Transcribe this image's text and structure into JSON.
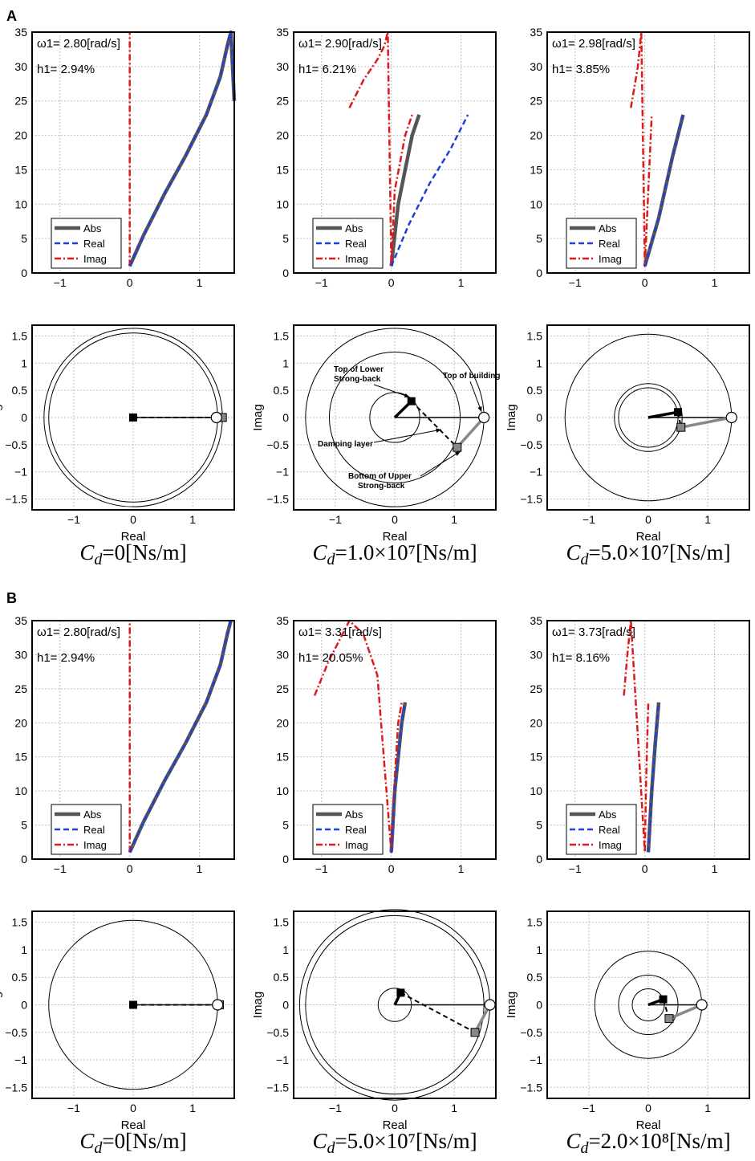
{
  "panel_labels": [
    "A",
    "B"
  ],
  "legend": {
    "abs": "Abs",
    "real": "Real",
    "imag": "Imag"
  },
  "axis_text": {
    "real": "Real",
    "imag": "Imag"
  },
  "colors": {
    "abs": "#555555",
    "real": "#1f3fd6",
    "imag": "#e01818",
    "grid": "#bfbfbf"
  },
  "chart_data": [
    {
      "group": "A",
      "col": 0,
      "type": "line",
      "xlim": [
        -1.4,
        1.5
      ],
      "ylim": [
        0,
        35
      ],
      "xticks": [
        -1,
        0,
        1
      ],
      "yticks": [
        0,
        5,
        10,
        15,
        20,
        25,
        30,
        35
      ],
      "omega_label": "ω1= 2.80[rad/s]",
      "h_label": "h1= 2.94%",
      "damper": "0",
      "series": [
        {
          "name": "Abs",
          "x": [
            0,
            0.2,
            0.5,
            0.8,
            1.1,
            1.3,
            1.4,
            1.45,
            1.5
          ],
          "y": [
            1,
            5.5,
            11.5,
            17,
            23,
            28.5,
            33,
            35,
            25
          ]
        },
        {
          "name": "Real",
          "x": [
            0,
            0.2,
            0.5,
            0.8,
            1.1,
            1.3,
            1.4,
            1.45,
            1.5
          ],
          "y": [
            1,
            5.5,
            11.5,
            17,
            23,
            28.5,
            33,
            35,
            25
          ]
        },
        {
          "name": "Imag",
          "x": [
            0,
            0,
            0,
            0
          ],
          "y": [
            1,
            23,
            24,
            35
          ]
        }
      ]
    },
    {
      "group": "A",
      "col": 1,
      "type": "line",
      "xlim": [
        -1.4,
        1.5
      ],
      "ylim": [
        0,
        35
      ],
      "xticks": [
        -1,
        0,
        1
      ],
      "yticks": [
        0,
        5,
        10,
        15,
        20,
        25,
        30,
        35
      ],
      "omega_label": "ω1= 2.90[rad/s]",
      "h_label": "h1= 6.21%",
      "damper": "1.0×10⁷",
      "series": [
        {
          "name": "Abs",
          "x": [
            0,
            0.1,
            0.2,
            0.3,
            0.4
          ],
          "y": [
            1,
            10,
            15,
            20,
            23
          ]
        },
        {
          "name": "Real",
          "x": [
            0,
            0.25,
            0.55,
            0.85,
            1.1
          ],
          "y": [
            1,
            7,
            13,
            18,
            23
          ]
        },
        {
          "name": "Imag",
          "x": [
            -0.6,
            -0.4,
            -0.2,
            -0.1,
            -0.05,
            0,
            0.05,
            0.2,
            0.3
          ],
          "y": [
            24,
            28,
            31,
            33,
            35,
            1,
            12,
            20,
            23
          ]
        }
      ]
    },
    {
      "group": "A",
      "col": 2,
      "type": "line",
      "xlim": [
        -1.4,
        1.5
      ],
      "ylim": [
        0,
        35
      ],
      "xticks": [
        -1,
        0,
        1
      ],
      "yticks": [
        0,
        5,
        10,
        15,
        20,
        25,
        30,
        35
      ],
      "omega_label": "ω1= 2.98[rad/s]",
      "h_label": "h1= 3.85%",
      "damper": "5.0×10⁷",
      "series": [
        {
          "name": "Abs",
          "x": [
            0,
            0.2,
            0.4,
            0.55
          ],
          "y": [
            1,
            8,
            17,
            23
          ]
        },
        {
          "name": "Real",
          "x": [
            0,
            0.2,
            0.4,
            0.55
          ],
          "y": [
            1,
            8,
            17,
            23
          ]
        },
        {
          "name": "Imag",
          "x": [
            -0.2,
            -0.1,
            -0.05,
            0,
            0.05,
            0.1
          ],
          "y": [
            24,
            30,
            35,
            1,
            12,
            23
          ]
        }
      ]
    },
    {
      "group": "A",
      "col": 0,
      "type": "scatter",
      "xlim": [
        -1.7,
        1.7
      ],
      "ylim": [
        -1.7,
        1.7
      ],
      "xticks": [
        -1,
        0,
        1
      ],
      "yticks": [
        -1.5,
        -1,
        -0.5,
        0,
        0.5,
        1,
        1.5
      ],
      "caption": "C",
      "caption_sub": "d",
      "caption_value": "=0[Ns/m]",
      "circles": [
        1.42,
        1.5
      ],
      "points": [
        {
          "name": "top",
          "x": 1.4,
          "y": 0
        },
        {
          "name": "upper",
          "x": 1.5,
          "y": 0
        },
        {
          "name": "lower",
          "x": 0,
          "y": 0
        }
      ],
      "annotations": []
    },
    {
      "group": "A",
      "col": 1,
      "type": "scatter",
      "xlim": [
        -1.7,
        1.7
      ],
      "ylim": [
        -1.7,
        1.7
      ],
      "xticks": [
        -1,
        0,
        1
      ],
      "yticks": [
        -1.5,
        -1,
        -0.5,
        0,
        0.5,
        1,
        1.5
      ],
      "caption": "C",
      "caption_sub": "d",
      "caption_value": "=1.0×10⁷[Ns/m]",
      "circles": [
        0.42,
        1.1,
        1.5
      ],
      "points": [
        {
          "name": "top",
          "x": 1.5,
          "y": 0
        },
        {
          "name": "upper",
          "x": 1.05,
          "y": -0.55
        },
        {
          "name": "lower",
          "x": 0.28,
          "y": 0.3
        }
      ],
      "annotations": [
        "Top of Lower",
        "Strong-back",
        "Top of building",
        "Damping layer",
        "Bottom of Upper",
        "Strong-back"
      ]
    },
    {
      "group": "A",
      "col": 2,
      "type": "scatter",
      "xlim": [
        -1.7,
        1.7
      ],
      "ylim": [
        -1.7,
        1.7
      ],
      "xticks": [
        -1,
        0,
        1
      ],
      "yticks": [
        -1.5,
        -1,
        -0.5,
        0,
        0.5,
        1,
        1.5
      ],
      "caption": "C",
      "caption_sub": "d",
      "caption_value": "=5.0×10⁷[Ns/m]",
      "circles": [
        0.5,
        0.57,
        1.4
      ],
      "points": [
        {
          "name": "top",
          "x": 1.4,
          "y": 0
        },
        {
          "name": "upper",
          "x": 0.55,
          "y": -0.18
        },
        {
          "name": "lower",
          "x": 0.5,
          "y": 0.1
        }
      ],
      "annotations": []
    },
    {
      "group": "B",
      "col": 0,
      "type": "line",
      "xlim": [
        -1.4,
        1.5
      ],
      "ylim": [
        0,
        35
      ],
      "xticks": [
        -1,
        0,
        1
      ],
      "yticks": [
        0,
        5,
        10,
        15,
        20,
        25,
        30,
        35
      ],
      "omega_label": "ω1= 2.80[rad/s]",
      "h_label": "h1= 2.94%",
      "damper": "0",
      "series": [
        {
          "name": "Abs",
          "x": [
            0,
            0.2,
            0.5,
            0.8,
            1.1,
            1.3,
            1.4,
            1.45
          ],
          "y": [
            1,
            5.5,
            11.5,
            17,
            23,
            28.5,
            33,
            35
          ]
        },
        {
          "name": "Real",
          "x": [
            0,
            0.2,
            0.5,
            0.8,
            1.1,
            1.3,
            1.4,
            1.45
          ],
          "y": [
            1,
            5.5,
            11.5,
            17,
            23,
            28.5,
            33,
            35
          ]
        },
        {
          "name": "Imag",
          "x": [
            0,
            0,
            0,
            0
          ],
          "y": [
            1,
            23,
            24,
            35
          ]
        }
      ]
    },
    {
      "group": "B",
      "col": 1,
      "type": "line",
      "xlim": [
        -1.4,
        1.5
      ],
      "ylim": [
        0,
        35
      ],
      "xticks": [
        -1,
        0,
        1
      ],
      "yticks": [
        0,
        5,
        10,
        15,
        20,
        25,
        30,
        35
      ],
      "omega_label": "ω1= 3.31[rad/s]",
      "h_label": "h1= 20.05%",
      "damper": "5.0×10⁷",
      "series": [
        {
          "name": "Abs",
          "x": [
            0,
            0.05,
            0.1,
            0.15,
            0.2
          ],
          "y": [
            1,
            10,
            15,
            20,
            23
          ]
        },
        {
          "name": "Real",
          "x": [
            0,
            0.05,
            0.1,
            0.15,
            0.2
          ],
          "y": [
            1,
            10,
            15,
            20,
            23
          ]
        },
        {
          "name": "Imag",
          "x": [
            -1.1,
            -0.9,
            -0.75,
            -0.6,
            -0.4,
            -0.2,
            0,
            0.05,
            0.1,
            0.15
          ],
          "y": [
            24,
            29,
            32,
            35,
            33,
            27,
            1,
            12,
            20,
            23
          ]
        }
      ]
    },
    {
      "group": "B",
      "col": 2,
      "type": "line",
      "xlim": [
        -1.4,
        1.5
      ],
      "ylim": [
        0,
        35
      ],
      "xticks": [
        -1,
        0,
        1
      ],
      "yticks": [
        0,
        5,
        10,
        15,
        20,
        25,
        30,
        35
      ],
      "omega_label": "ω1= 3.73[rad/s]",
      "h_label": "h1= 8.16%",
      "damper": "2.0×10⁸",
      "series": [
        {
          "name": "Abs",
          "x": [
            0.05,
            0.1,
            0.15,
            0.2
          ],
          "y": [
            1,
            10,
            17,
            23
          ]
        },
        {
          "name": "Real",
          "x": [
            0.05,
            0.1,
            0.15,
            0.2
          ],
          "y": [
            1,
            10,
            17,
            23
          ]
        },
        {
          "name": "Imag",
          "x": [
            -0.3,
            -0.25,
            -0.2,
            0,
            0.02,
            0.05
          ],
          "y": [
            24,
            30,
            35,
            1,
            12,
            23
          ]
        }
      ]
    },
    {
      "group": "B",
      "col": 0,
      "type": "scatter",
      "xlim": [
        -1.7,
        1.7
      ],
      "ylim": [
        -1.7,
        1.7
      ],
      "xticks": [
        -1,
        0,
        1
      ],
      "yticks": [
        -1.5,
        -1,
        -0.5,
        0,
        0.5,
        1,
        1.5
      ],
      "caption": "C",
      "caption_sub": "d",
      "caption_value": "=0[Ns/m]",
      "circles": [
        1.42
      ],
      "points": [
        {
          "name": "top",
          "x": 1.42,
          "y": 0
        },
        {
          "name": "upper",
          "x": 1.45,
          "y": 0
        },
        {
          "name": "lower",
          "x": 0,
          "y": 0
        }
      ],
      "annotations": []
    },
    {
      "group": "B",
      "col": 1,
      "type": "scatter",
      "xlim": [
        -1.7,
        1.7
      ],
      "ylim": [
        -1.7,
        1.7
      ],
      "xticks": [
        -1,
        0,
        1
      ],
      "yticks": [
        -1.5,
        -1,
        -0.5,
        0,
        0.5,
        1,
        1.5
      ],
      "caption": "C",
      "caption_sub": "d",
      "caption_value": "=5.0×10⁷[Ns/m]",
      "circles": [
        0.28,
        1.5,
        1.6
      ],
      "points": [
        {
          "name": "top",
          "x": 1.6,
          "y": 0
        },
        {
          "name": "upper",
          "x": 1.35,
          "y": -0.5
        },
        {
          "name": "lower",
          "x": 0.1,
          "y": 0.22
        }
      ],
      "annotations": []
    },
    {
      "group": "B",
      "col": 2,
      "type": "scatter",
      "xlim": [
        -1.7,
        1.7
      ],
      "ylim": [
        -1.7,
        1.7
      ],
      "xticks": [
        -1,
        0,
        1
      ],
      "yticks": [
        -1.5,
        -1,
        -0.5,
        0,
        0.5,
        1,
        1.5
      ],
      "caption": "C",
      "caption_sub": "d",
      "caption_value": "=2.0×10⁸[Ns/m]",
      "circles": [
        0.27,
        0.5,
        0.9
      ],
      "points": [
        {
          "name": "top",
          "x": 0.9,
          "y": 0
        },
        {
          "name": "upper",
          "x": 0.35,
          "y": -0.25
        },
        {
          "name": "lower",
          "x": 0.25,
          "y": 0.1
        }
      ],
      "annotations": []
    }
  ]
}
